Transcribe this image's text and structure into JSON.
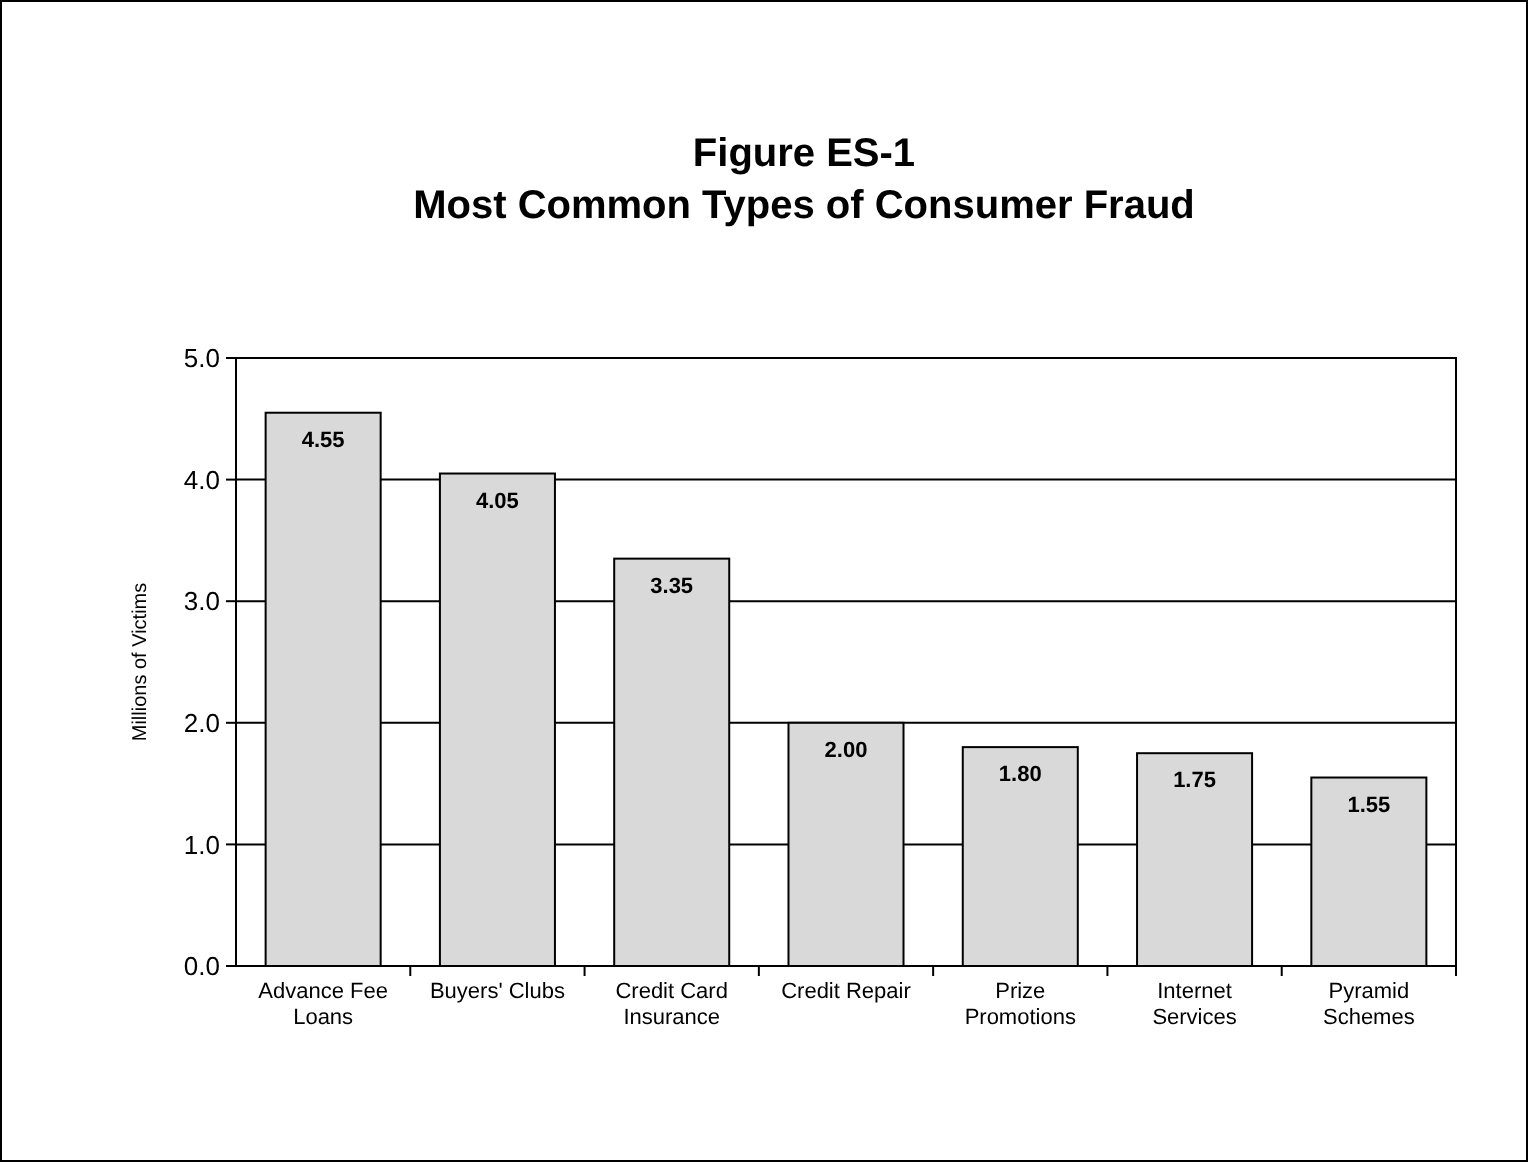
{
  "chart_data": {
    "type": "bar",
    "title": "Figure ES-1\nMost Common Types of Consumer Fraud",
    "ylabel": "Millions of Victims",
    "categories": [
      "Advance Fee Loans",
      "Buyers' Clubs",
      "Credit Card Insurance",
      "Credit Repair",
      "Prize Promotions",
      "Internet Services",
      "Pyramid Schemes"
    ],
    "values": [
      4.55,
      4.05,
      3.35,
      2.0,
      1.8,
      1.75,
      1.55
    ],
    "value_labels": [
      "4.55",
      "4.05",
      "3.35",
      "2.00",
      "1.80",
      "1.75",
      "1.55"
    ],
    "color": "#d9d9d9",
    "ylim": [
      0,
      5
    ],
    "yticks": [
      {
        "value": 0,
        "label": "0.0"
      },
      {
        "value": 1,
        "label": "1.0"
      },
      {
        "value": 2,
        "label": "2.0"
      },
      {
        "value": 3,
        "label": "3.0"
      },
      {
        "value": 4,
        "label": "4.0"
      },
      {
        "value": 5,
        "label": "5.0"
      }
    ],
    "grid": "y"
  }
}
